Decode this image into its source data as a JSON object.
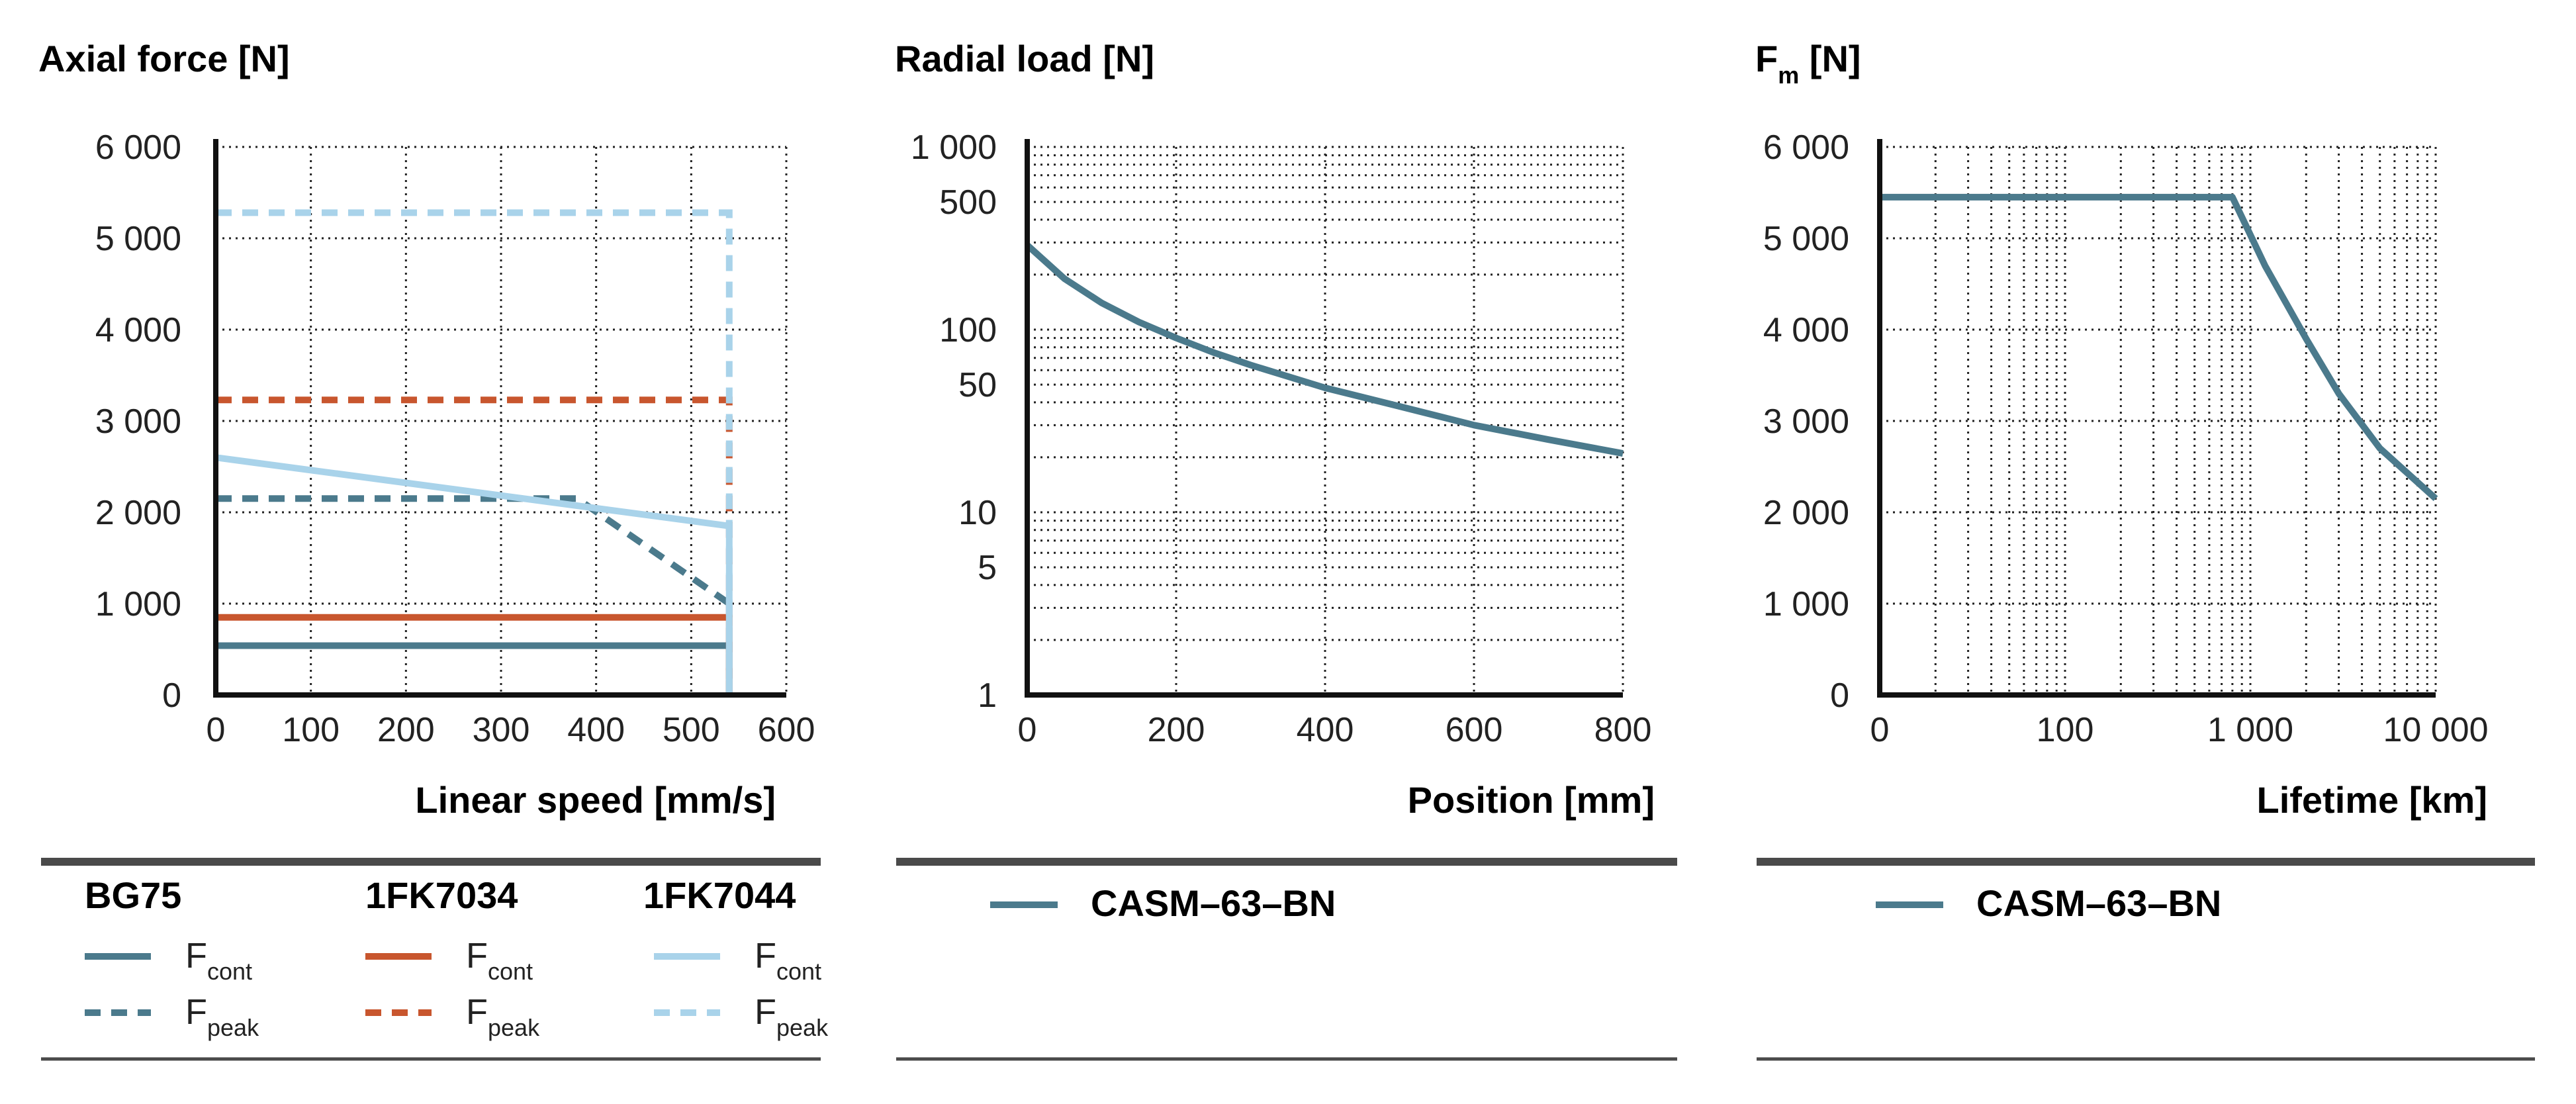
{
  "colors": {
    "bg75": "#4b7a8c",
    "fk7034": "#c8562e",
    "fk7044": "#a9d3ea",
    "casm": "#4b7a8c",
    "axis": "#111111",
    "grid": "#222222",
    "rule": "#4a4a4a"
  },
  "chart_data": [
    {
      "type": "line",
      "title": "Axial force [N]",
      "xlabel": "Linear speed [mm/s]",
      "x_ticks": [
        "0",
        "100",
        "200",
        "300",
        "400",
        "500",
        "600"
      ],
      "y_ticks": [
        "0",
        "1 000",
        "2 000",
        "3 000",
        "4 000",
        "5 000",
        "6 000"
      ],
      "xlim": [
        0,
        600
      ],
      "ylim": [
        0,
        6000
      ],
      "grid": true,
      "series": [
        {
          "group": "BG75",
          "name": "Fcont",
          "style": "solid",
          "color_key": "bg75",
          "points": [
            [
              0,
              540
            ],
            [
              540,
              540
            ],
            [
              540,
              0
            ]
          ]
        },
        {
          "group": "BG75",
          "name": "Fpeak",
          "style": "dashed",
          "color_key": "bg75",
          "points": [
            [
              0,
              2150
            ],
            [
              380,
              2150
            ],
            [
              540,
              1000
            ]
          ]
        },
        {
          "group": "1FK7034",
          "name": "Fcont",
          "style": "solid",
          "color_key": "fk7034",
          "points": [
            [
              0,
              850
            ],
            [
              540,
              850
            ],
            [
              540,
              0
            ]
          ]
        },
        {
          "group": "1FK7034",
          "name": "Fpeak",
          "style": "dashed",
          "color_key": "fk7034",
          "points": [
            [
              0,
              3230
            ],
            [
              540,
              3230
            ],
            [
              540,
              0
            ]
          ]
        },
        {
          "group": "1FK7044",
          "name": "Fcont",
          "style": "solid",
          "color_key": "fk7044",
          "points": [
            [
              0,
              2600
            ],
            [
              540,
              1850
            ],
            [
              540,
              0
            ]
          ]
        },
        {
          "group": "1FK7044",
          "name": "Fpeak",
          "style": "dashed",
          "color_key": "fk7044",
          "points": [
            [
              0,
              5280
            ],
            [
              540,
              5280
            ],
            [
              540,
              0
            ]
          ]
        }
      ]
    },
    {
      "type": "line",
      "title": "Radial load [N]",
      "xlabel": "Position [mm]",
      "x_ticks": [
        "0",
        "200",
        "400",
        "600",
        "800"
      ],
      "y_ticks": [
        "1",
        "5",
        "10",
        "50",
        "100",
        "500",
        "1 000"
      ],
      "y_tick_values": [
        1,
        5,
        10,
        50,
        100,
        500,
        1000
      ],
      "xlim": [
        0,
        800
      ],
      "ylim": [
        1,
        1000
      ],
      "y_scale": "log",
      "grid": true,
      "series": [
        {
          "name": "CASM–63–BN",
          "style": "solid",
          "color_key": "casm",
          "points": [
            [
              0,
              290
            ],
            [
              50,
              190
            ],
            [
              100,
              140
            ],
            [
              150,
              110
            ],
            [
              200,
              90
            ],
            [
              250,
              75
            ],
            [
              300,
              64
            ],
            [
              400,
              48
            ],
            [
              500,
              38
            ],
            [
              600,
              30
            ],
            [
              700,
              25
            ],
            [
              800,
              21
            ]
          ]
        }
      ]
    },
    {
      "type": "line",
      "title": "F",
      "title_sub": "m",
      "title_rest": " [N]",
      "xlabel": "Lifetime [km]",
      "x_ticks": [
        "0",
        "100",
        "1 000",
        "10 000"
      ],
      "x_tick_values": [
        10,
        100,
        1000,
        10000
      ],
      "y_ticks": [
        "0",
        "1 000",
        "2 000",
        "3 000",
        "4 000",
        "5 000",
        "6 000"
      ],
      "xlim": [
        10,
        10000
      ],
      "ylim": [
        0,
        6000
      ],
      "x_scale": "log",
      "grid": true,
      "series": [
        {
          "name": "CASM–63–BN",
          "style": "solid",
          "color_key": "casm",
          "points": [
            [
              10,
              5450
            ],
            [
              800,
              5450
            ],
            [
              1200,
              4700
            ],
            [
              2000,
              3900
            ],
            [
              3000,
              3300
            ],
            [
              5000,
              2700
            ],
            [
              10000,
              2150
            ]
          ]
        }
      ]
    }
  ],
  "legends": {
    "axial": {
      "groups": [
        {
          "name": "BG75",
          "color_key": "bg75"
        },
        {
          "name": "1FK7034",
          "color_key": "fk7034"
        },
        {
          "name": "1FK7044",
          "color_key": "fk7044"
        }
      ],
      "cont_main": "F",
      "cont_sub": "cont",
      "peak_main": "F",
      "peak_sub": "peak"
    },
    "radial": {
      "label": "CASM–63–BN"
    },
    "lifetime": {
      "label": "CASM–63–BN"
    }
  }
}
